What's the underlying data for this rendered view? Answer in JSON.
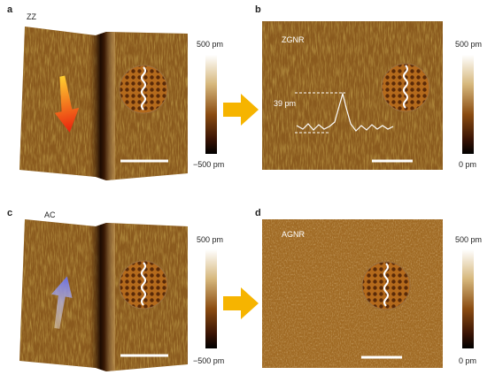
{
  "panels": [
    {
      "label": "a",
      "tag": "ZZ",
      "scale_top": "500 pm",
      "scale_bottom": "−500 pm"
    },
    {
      "label": "b",
      "tag": "ZGNR",
      "scale_top": "500 pm",
      "scale_bottom": "0 pm",
      "annotation": "39 pm"
    },
    {
      "label": "c",
      "tag": "AC",
      "scale_top": "500 pm",
      "scale_bottom": "−500 pm"
    },
    {
      "label": "d",
      "tag": "AGNR",
      "scale_top": "500 pm",
      "scale_bottom": "0 pm"
    }
  ]
}
